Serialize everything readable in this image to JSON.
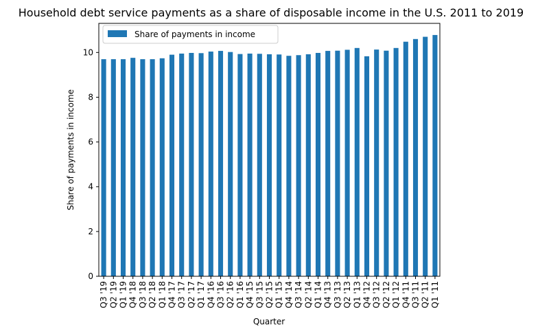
{
  "chart_data": {
    "type": "bar",
    "title": "Household debt service payments as a share of disposable income in the U.S. 2011 to 2019",
    "xlabel": "Quarter",
    "ylabel": "Share of payments in income",
    "ylim": [
      0,
      11.3
    ],
    "yticks": [
      0,
      2,
      4,
      6,
      8,
      10
    ],
    "grid": false,
    "legend_position": "top-left",
    "colors": {
      "bar": "#1f77b4",
      "axis": "#000000",
      "legend_border": "#cccccc"
    },
    "categories": [
      "Q3 '19",
      "Q2 '19",
      "Q1 '19",
      "Q4 '18",
      "Q3 '18",
      "Q2 '18",
      "Q1 '18",
      "Q4 '17",
      "Q3 '17",
      "Q2 '17",
      "Q1 '17",
      "Q4 '16",
      "Q3 '16",
      "Q2 '16",
      "Q1 '16",
      "Q4 '15",
      "Q3 '15",
      "Q2 '15",
      "Q1 '15",
      "Q4 '14",
      "Q3 '14",
      "Q2 '14",
      "Q1 '14",
      "Q4 '13",
      "Q3 '13",
      "Q2 '13",
      "Q1 '13",
      "Q4 '12",
      "Q3 '12",
      "Q2 '12",
      "Q1 '12",
      "Q4 '11",
      "Q3 '11",
      "Q2 '11",
      "Q1 '11"
    ],
    "series": [
      {
        "name": "Share of payments in income",
        "values": [
          9.7,
          9.7,
          9.7,
          9.76,
          9.7,
          9.7,
          9.74,
          9.9,
          9.95,
          9.98,
          9.97,
          10.04,
          10.07,
          10.02,
          9.93,
          9.95,
          9.94,
          9.92,
          9.91,
          9.85,
          9.88,
          9.92,
          9.98,
          10.07,
          10.08,
          10.12,
          10.2,
          9.83,
          10.13,
          10.08,
          10.2,
          10.48,
          10.6,
          10.7,
          10.78
        ]
      }
    ]
  }
}
